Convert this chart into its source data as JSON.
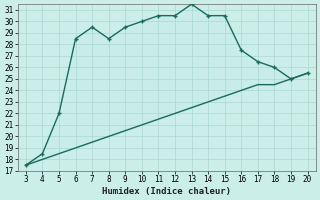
{
  "xlabel": "Humidex (Indice chaleur)",
  "x": [
    3,
    4,
    5,
    6,
    7,
    8,
    9,
    10,
    11,
    12,
    13,
    14,
    15,
    16,
    17,
    18,
    19,
    20
  ],
  "y_upper": [
    17.5,
    18.5,
    22.0,
    28.5,
    29.5,
    28.5,
    29.5,
    30.0,
    30.5,
    30.5,
    31.5,
    30.5,
    30.5,
    27.5,
    26.5,
    26.0,
    25.0,
    25.5
  ],
  "y_lower": [
    17.5,
    18.0,
    18.5,
    19.0,
    19.5,
    20.0,
    20.5,
    21.0,
    21.5,
    22.0,
    22.5,
    23.0,
    23.5,
    24.0,
    24.5,
    24.5,
    25.0,
    25.5
  ],
  "ylim": [
    17,
    31.5
  ],
  "xlim": [
    2.5,
    20.5
  ],
  "yticks": [
    17,
    18,
    19,
    20,
    21,
    22,
    23,
    24,
    25,
    26,
    27,
    28,
    29,
    30,
    31
  ],
  "xticks": [
    3,
    4,
    5,
    6,
    7,
    8,
    9,
    10,
    11,
    12,
    13,
    14,
    15,
    16,
    17,
    18,
    19,
    20
  ],
  "line_color": "#1a6b5a",
  "fill_color": "#c8ece8",
  "bg_color": "#cceee8",
  "grid_color": "#aad8d0"
}
